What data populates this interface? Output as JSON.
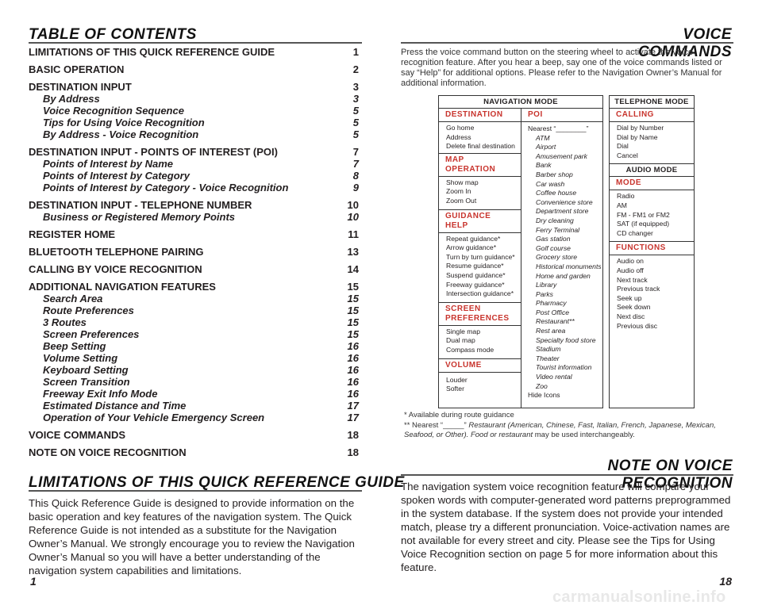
{
  "left": {
    "toc_title": "TABLE OF CONTENTS",
    "toc": [
      {
        "label": "LIMITATIONS OF THIS QUICK REFERENCE GUIDE",
        "page": "1",
        "level": "main"
      },
      {
        "label": "BASIC OPERATION",
        "page": "2",
        "level": "main"
      },
      {
        "label": "DESTINATION INPUT",
        "page": "3",
        "level": "main"
      },
      {
        "label": "By Address",
        "page": "3",
        "level": "sub"
      },
      {
        "label": "Voice Recognition Sequence",
        "page": "5",
        "level": "sub"
      },
      {
        "label": "Tips for Using Voice Recognition",
        "page": "5",
        "level": "sub"
      },
      {
        "label": "By Address - Voice Recognition",
        "page": "5",
        "level": "sub"
      },
      {
        "label": "DESTINATION INPUT - POINTS OF INTEREST (POI)",
        "page": "7",
        "level": "main"
      },
      {
        "label": "Points of Interest by Name",
        "page": "7",
        "level": "sub"
      },
      {
        "label": "Points of Interest by Category",
        "page": "8",
        "level": "sub"
      },
      {
        "label": "Points of Interest by Category - Voice Recognition",
        "page": "9",
        "level": "sub"
      },
      {
        "label": "DESTINATION INPUT - TELEPHONE NUMBER",
        "page": "10",
        "level": "main"
      },
      {
        "label": "Business or Registered Memory Points",
        "page": "10",
        "level": "sub"
      },
      {
        "label": "REGISTER HOME",
        "page": "11",
        "level": "main"
      },
      {
        "label": "BLUETOOTH TELEPHONE PAIRING",
        "page": "13",
        "level": "main"
      },
      {
        "label": "CALLING BY VOICE RECOGNITION",
        "page": "14",
        "level": "main"
      },
      {
        "label": "ADDITIONAL NAVIGATION FEATURES",
        "page": "15",
        "level": "main"
      },
      {
        "label": "Search Area",
        "page": "15",
        "level": "sub"
      },
      {
        "label": "Route Preferences",
        "page": "15",
        "level": "sub"
      },
      {
        "label": "3 Routes",
        "page": "15",
        "level": "sub"
      },
      {
        "label": "Screen Preferences",
        "page": "15",
        "level": "sub"
      },
      {
        "label": "Beep Setting",
        "page": "16",
        "level": "sub"
      },
      {
        "label": "Volume Setting",
        "page": "16",
        "level": "sub"
      },
      {
        "label": "Keyboard Setting",
        "page": "16",
        "level": "sub"
      },
      {
        "label": "Screen Transition",
        "page": "16",
        "level": "sub"
      },
      {
        "label": "Freeway Exit Info Mode",
        "page": "16",
        "level": "sub"
      },
      {
        "label": "Estimated Distance and Time",
        "page": "17",
        "level": "sub"
      },
      {
        "label": "Operation of Your Vehicle Emergency Screen",
        "page": "17",
        "level": "sub"
      },
      {
        "label": "VOICE COMMANDS",
        "page": "18",
        "level": "main"
      },
      {
        "label": "NOTE ON VOICE RECOGNITION",
        "page": "18",
        "level": "main"
      }
    ],
    "limitations_title": "LIMITATIONS OF THIS QUICK REFERENCE GUIDE",
    "limitations_text": "This Quick Reference Guide is designed to provide information on the basic operation and key features of the navigation system. The Quick Reference Guide is not intended as a substitute for the Navigation Owner’s Manual. We strongly encourage you to review the Navigation Owner’s Manual so you will have a better understanding of the navigation system capabilities and limitations.",
    "page_number": "1"
  },
  "right": {
    "vc_title": "VOICE COMMANDS",
    "intro": "Press the voice command button on the steering wheel to activate the voice recognition feature. After you hear a beep, say one of the voice commands listed or say “Help” for additional options. Please refer to the Navigation Owner’s Manual for additional information.",
    "nav_mode": "NAVIGATION MODE",
    "tel_mode": "TELEPHONE MODE",
    "audio_mode": "AUDIO MODE",
    "destination": {
      "title": "DESTINATION",
      "items": [
        "Go home",
        "Address",
        "Delete final destination"
      ]
    },
    "map_operation": {
      "title": "MAP OPERATION",
      "items": [
        "Show map",
        "Zoom In",
        "Zoom Out"
      ]
    },
    "guidance_help": {
      "title": "GUIDANCE HELP",
      "items": [
        "Repeat guidance*",
        "Arrow guidance*",
        "Turn by turn guidance*",
        "Resume guidance*",
        "Suspend guidance*",
        "Freeway guidance*",
        "Intersection guidance*"
      ]
    },
    "screen_prefs": {
      "title_line1": "SCREEN",
      "title_line2": "PREFERENCES",
      "items": [
        "Single map",
        "Dual map",
        "Compass mode"
      ]
    },
    "volume": {
      "title": "VOLUME",
      "items": [
        "Louder",
        "Softer"
      ]
    },
    "poi": {
      "title": "POI",
      "nearest": "Nearest “________”",
      "items": [
        "ATM",
        "Airport",
        "Amusement park",
        "Bank",
        "Barber shop",
        "Car wash",
        "Coffee house",
        "Convenience store",
        "Department store",
        "Dry cleaning",
        "Ferry Terminal",
        "Gas station",
        "Golf course",
        "Grocery store",
        "Historical monuments",
        "Home and garden",
        "Library",
        "Parks",
        "Pharmacy",
        "Post Office",
        "Restaurant**",
        "Rest area",
        "Specialty food store",
        "Stadium",
        "Theater",
        "Tourist information",
        "Video rental",
        "Zoo"
      ],
      "hide": "Hide Icons"
    },
    "calling": {
      "title": "CALLING",
      "items": [
        "Dial by Number",
        "Dial by Name",
        "Dial",
        "Cancel"
      ]
    },
    "mode": {
      "title": "MODE",
      "items": [
        "Radio",
        "AM",
        "FM - FM1 or FM2",
        "SAT (if equipped)",
        "CD changer"
      ]
    },
    "functions": {
      "title": "FUNCTIONS",
      "items": [
        "Audio on",
        "Audio off",
        "Next track",
        "Previous track",
        "Seek up",
        "Seek down",
        "Next disc",
        "Previous disc"
      ]
    },
    "footnote1": "*   Available during route guidance",
    "footnote2_prefix": "** Nearest “_____” ",
    "footnote2_italic": "Restaurant (American, Chinese, Fast, Italian, French, Japanese, Mexican, Seafood, or Other). Food or restaurant",
    "footnote2_suffix": " may be used interchangeably.",
    "note_title": "NOTE ON VOICE RECOGNITION",
    "note_text": "The navigation system voice recognition feature will compare your spoken words with computer-generated word patterns preprogrammed in the system database. If the system does not provide your intended match, please try a different pronunciation. Voice-activation names are not available for every street and city. Please see the Tips for Using Voice Recognition section on page 5 for more information about this feature.",
    "page_number": "18"
  },
  "watermark": "carmanualsonline.info"
}
